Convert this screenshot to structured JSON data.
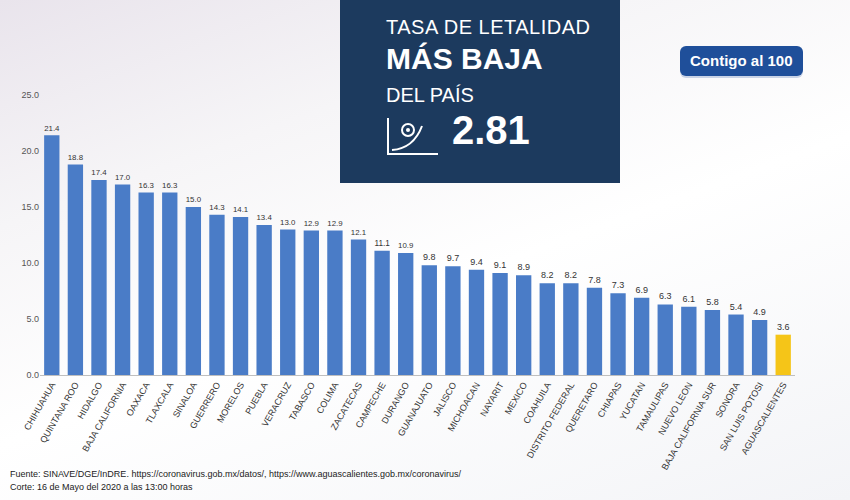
{
  "chart_data": {
    "type": "bar",
    "title": "TASA DE LETALIDAD",
    "subtitle": "MÁS BAJA",
    "annotations": [
      "DEL PAÍS",
      "2.81",
      "Contigo al 100",
      "Fuente: SINAVE/DGE/InDRE. https://coronavirus.gob.mx/datos/, https://www.aguascalientes.gob.mx/coronavirus/",
      "Corte: 16 de Mayo del 2020 a las 13:00 horas"
    ],
    "categories": [
      "CHIHUAHUA",
      "QUINTANA ROO",
      "HIDALGO",
      "BAJA CALIFORNIA",
      "OAXACA",
      "TLAXCALA",
      "SINALOA",
      "GUERRERO",
      "MORELOS",
      "PUEBLA",
      "VERACRUZ",
      "TABASCO",
      "COLIMA",
      "ZACATECAS",
      "CAMPECHE",
      "DURANGO",
      "GUANAJUATO",
      "JALISCO",
      "MICHOACAN",
      "NAYARIT",
      "MEXICO",
      "COAHUILA",
      "DISTRITO FEDERAL",
      "QUERETARO",
      "CHIAPAS",
      "YUCATAN",
      "TAMAULIPAS",
      "NUEVO LEON",
      "BAJA CALIFORNIA SUR",
      "SONORA",
      "SAN LUIS POTOSI",
      "AGUASCALIENTES"
    ],
    "values": [
      21.4,
      18.8,
      17.4,
      17.0,
      16.3,
      16.3,
      15.0,
      14.3,
      14.1,
      13.4,
      13.0,
      12.9,
      12.9,
      12.1,
      11.1,
      10.9,
      9.8,
      9.7,
      9.4,
      9.1,
      8.9,
      8.2,
      8.2,
      7.8,
      7.3,
      6.9,
      6.3,
      6.1,
      5.8,
      5.4,
      4.9,
      3.6
    ],
    "value_labels": [
      "21.4",
      "18.8",
      "17.4",
      "17.0",
      "16.3",
      "16.3",
      "15.0",
      "14.3",
      "14.1",
      "13.4",
      "13.0",
      "12.9",
      "12.9",
      "12.1",
      "11.1",
      "10.9",
      "9.8",
      "9.7",
      "9.4",
      "9.1",
      "8.9",
      "8.2",
      "8.2",
      "7.8",
      "7.3",
      "6.9",
      "6.3",
      "6.1",
      "5.8",
      "5.4",
      "4.9",
      "3.6"
    ],
    "colors": [
      "#4a7cc7",
      "#4a7cc7",
      "#4a7cc7",
      "#4a7cc7",
      "#4a7cc7",
      "#4a7cc7",
      "#4a7cc7",
      "#4a7cc7",
      "#4a7cc7",
      "#4a7cc7",
      "#4a7cc7",
      "#4a7cc7",
      "#4a7cc7",
      "#4a7cc7",
      "#4a7cc7",
      "#4a7cc7",
      "#4a7cc7",
      "#4a7cc7",
      "#4a7cc7",
      "#4a7cc7",
      "#4a7cc7",
      "#4a7cc7",
      "#4a7cc7",
      "#4a7cc7",
      "#4a7cc7",
      "#4a7cc7",
      "#4a7cc7",
      "#4a7cc7",
      "#4a7cc7",
      "#4a7cc7",
      "#4a7cc7",
      "#f5c518"
    ],
    "ylim": [
      0,
      25
    ],
    "yticks": [
      {
        "value": 0,
        "label": "0.0"
      },
      {
        "value": 5,
        "label": "5.0"
      },
      {
        "value": 10,
        "label": "10.0"
      },
      {
        "value": 15,
        "label": "15.0"
      },
      {
        "value": 20,
        "label": "20.0"
      },
      {
        "value": 25,
        "label": "25.0"
      }
    ],
    "grid": false,
    "data_labels": true
  }
}
